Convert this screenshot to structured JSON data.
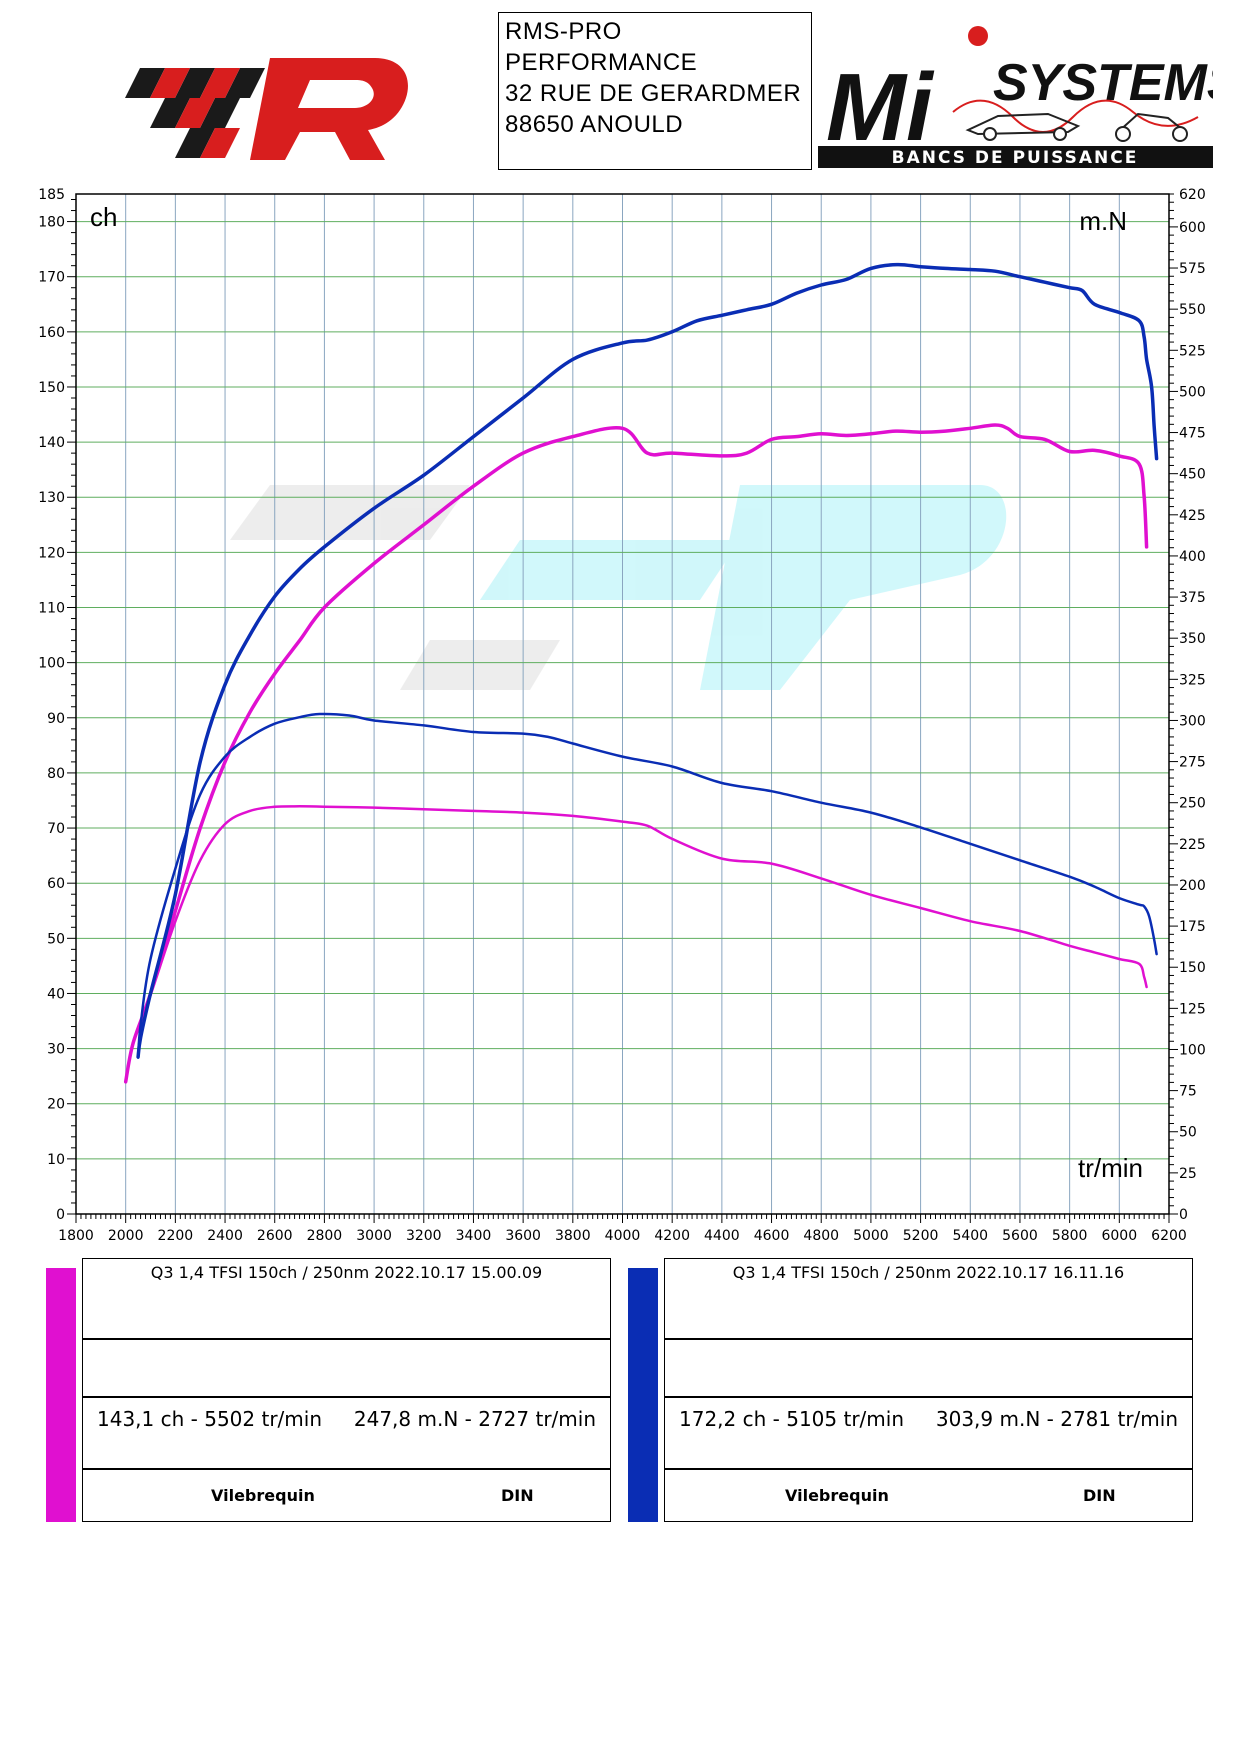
{
  "header": {
    "address_lines": [
      "RMS-PRO",
      "PERFORMANCE",
      "32 RUE DE GERARDMER",
      "88650 ANOULD"
    ],
    "right_logo": {
      "brand_text": "SYSTEMS",
      "brand_initials": "Mi",
      "tagline": "BANCS DE PUISSANCE"
    }
  },
  "chart_data": {
    "type": "line",
    "xlabel": "tr/min",
    "ylabel_left": "ch",
    "ylabel_right": "m.N",
    "xlim": [
      1800,
      6200
    ],
    "ylim_left": [
      0,
      185
    ],
    "ylim_right": [
      0,
      620
    ],
    "x_ticks": [
      1800,
      2000,
      2200,
      2400,
      2600,
      2800,
      3000,
      3200,
      3400,
      3600,
      3800,
      4000,
      4200,
      4400,
      4600,
      4800,
      5000,
      5200,
      5400,
      5600,
      5800,
      6000,
      6200
    ],
    "y_left_ticks": [
      0,
      10,
      20,
      30,
      40,
      50,
      60,
      70,
      80,
      90,
      100,
      110,
      120,
      130,
      140,
      150,
      160,
      170,
      180,
      185
    ],
    "y_right_ticks": [
      0,
      25,
      50,
      75,
      100,
      125,
      150,
      175,
      200,
      225,
      250,
      275,
      300,
      325,
      350,
      375,
      400,
      425,
      450,
      475,
      500,
      525,
      550,
      575,
      600,
      620
    ],
    "grid": true,
    "colors": {
      "run1": "#e010d0",
      "run2": "#0a2db4",
      "grid": "#5fae5f",
      "vgrid": "#8aa6c0"
    },
    "series": [
      {
        "name": "Q3 1,4 TFSI 150ch / 250nm   2022.10.17 15.00.09",
        "run": "run1",
        "quantity": "power",
        "axis": "left",
        "x": [
          2000,
          2030,
          2100,
          2200,
          2300,
          2400,
          2500,
          2600,
          2700,
          2800,
          3000,
          3200,
          3400,
          3600,
          3800,
          4000,
          4100,
          4200,
          4400,
          4500,
          4600,
          4700,
          4800,
          4900,
          5000,
          5100,
          5200,
          5300,
          5400,
          5500,
          5550,
          5600,
          5700,
          5800,
          5900,
          6000,
          6080,
          6100,
          6110
        ],
        "y": [
          24,
          31,
          40,
          55,
          70,
          82,
          91,
          98,
          104,
          110,
          118,
          125,
          132,
          138,
          141,
          142.5,
          138,
          138,
          137.5,
          138,
          140.5,
          141,
          141.5,
          141.2,
          141.5,
          142,
          141.8,
          142,
          142.5,
          143.1,
          142.5,
          141,
          140.5,
          138.3,
          138.5,
          137.5,
          136,
          130,
          121
        ]
      },
      {
        "name": "Q3 1,4 TFSI 150ch / 250nm   2022.10.17 15.00.09",
        "run": "run1",
        "quantity": "torque",
        "axis": "right",
        "x": [
          2000,
          2030,
          2100,
          2200,
          2300,
          2400,
          2500,
          2600,
          2700,
          2800,
          3000,
          3200,
          3400,
          3600,
          3800,
          4000,
          4100,
          4200,
          4400,
          4600,
          4800,
          5000,
          5200,
          5400,
          5600,
          5800,
          5900,
          6000,
          6080,
          6100,
          6110
        ],
        "y": [
          80,
          104,
          133,
          178,
          215,
          237,
          245,
          247.5,
          247.8,
          247.6,
          247,
          246,
          245,
          244,
          242,
          238.5,
          236,
          228,
          216,
          213,
          204,
          194,
          186,
          178,
          172,
          163,
          159,
          155,
          152,
          144,
          138
        ]
      },
      {
        "name": "Q3 1,4 TFSI 150ch / 250nm   2022.10.17 16.11.16",
        "run": "run2",
        "quantity": "power",
        "axis": "left",
        "x": [
          2050,
          2060,
          2100,
          2200,
          2300,
          2400,
          2500,
          2600,
          2700,
          2800,
          3000,
          3200,
          3400,
          3600,
          3800,
          4000,
          4100,
          4200,
          4300,
          4400,
          4500,
          4600,
          4700,
          4800,
          4900,
          5000,
          5105,
          5200,
          5300,
          5400,
          5500,
          5600,
          5700,
          5800,
          5850,
          5900,
          6000,
          6080,
          6100,
          6110,
          6130,
          6140,
          6150
        ],
        "y": [
          28.5,
          32,
          40,
          58,
          82,
          96,
          105,
          112,
          117,
          121,
          128,
          134,
          141,
          148,
          155,
          158,
          158.5,
          160,
          162,
          163,
          164,
          165,
          167,
          168.5,
          169.5,
          171.5,
          172.2,
          171.8,
          171.5,
          171.3,
          171,
          170,
          169,
          168,
          167.5,
          165,
          163.5,
          162,
          159,
          155,
          150,
          143,
          137
        ]
      },
      {
        "name": "Q3 1,4 TFSI 150ch / 250nm   2022.10.17 16.11.16",
        "run": "run2",
        "quantity": "torque",
        "axis": "right",
        "x": [
          2050,
          2060,
          2100,
          2200,
          2300,
          2400,
          2500,
          2600,
          2700,
          2781,
          2900,
          3000,
          3200,
          3400,
          3600,
          3700,
          3800,
          4000,
          4200,
          4400,
          4600,
          4800,
          5000,
          5200,
          5400,
          5600,
          5800,
          5900,
          6000,
          6080,
          6100,
          6120,
          6140,
          6150
        ],
        "y": [
          95,
          115,
          155,
          210,
          255,
          278,
          290,
          298,
          302,
          303.9,
          303,
          300,
          297,
          293,
          292,
          290,
          286,
          278,
          272,
          262,
          257,
          250,
          244,
          235,
          225,
          215,
          205,
          199,
          192,
          188,
          187,
          181,
          167,
          158
        ]
      }
    ]
  },
  "runs": [
    {
      "id": "run1",
      "color": "#e010d0",
      "title": "Q3 1,4 TFSI 150ch / 250nm   2022.10.17 15.00.09",
      "power_result": "143,1 ch - 5502 tr/min",
      "torque_result": "247,8 m.N - 2727 tr/min",
      "label_left": "Vilebrequin",
      "label_right": "DIN"
    },
    {
      "id": "run2",
      "color": "#0a2db4",
      "title": "Q3 1,4 TFSI 150ch / 250nm   2022.10.17 16.11.16",
      "power_result": "172,2 ch - 5105 tr/min",
      "torque_result": "303,9 m.N - 2781 tr/min",
      "label_left": "Vilebrequin",
      "label_right": "DIN"
    }
  ]
}
